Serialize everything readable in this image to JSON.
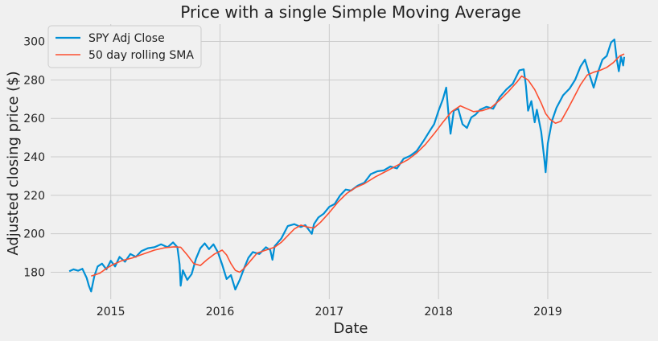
{
  "chart_data": {
    "type": "line",
    "title": "Price with a single Simple Moving Average",
    "xlabel": "Date",
    "ylabel": "Adjusted closing price ($)",
    "xlim": [
      2014.45,
      2019.95
    ],
    "ylim": [
      166,
      309
    ],
    "xticks": [
      2015,
      2016,
      2017,
      2018,
      2019
    ],
    "xtick_labels": [
      "2015",
      "2016",
      "2017",
      "2018",
      "2019"
    ],
    "yticks": [
      180,
      200,
      220,
      240,
      260,
      280,
      300
    ],
    "ytick_labels": [
      "180",
      "200",
      "220",
      "240",
      "260",
      "280",
      "300"
    ],
    "grid": true,
    "legend_position": "top-left",
    "colors": {
      "background": "#f0f0f0",
      "grid": "#cbcbcb",
      "text": "#222222"
    },
    "series": [
      {
        "name": "SPY Adj Close",
        "color": "#008fd5",
        "points": [
          [
            2014.62,
            180.5
          ],
          [
            2014.66,
            181.5
          ],
          [
            2014.7,
            180.8
          ],
          [
            2014.74,
            181.8
          ],
          [
            2014.78,
            177.0
          ],
          [
            2014.8,
            173.0
          ],
          [
            2014.82,
            170.0
          ],
          [
            2014.85,
            178.0
          ],
          [
            2014.88,
            183.0
          ],
          [
            2014.92,
            184.5
          ],
          [
            2014.96,
            181.5
          ],
          [
            2015.0,
            186.0
          ],
          [
            2015.04,
            183.0
          ],
          [
            2015.08,
            188.0
          ],
          [
            2015.13,
            185.5
          ],
          [
            2015.18,
            189.5
          ],
          [
            2015.23,
            188.0
          ],
          [
            2015.28,
            191.0
          ],
          [
            2015.34,
            192.5
          ],
          [
            2015.4,
            193.0
          ],
          [
            2015.46,
            194.5
          ],
          [
            2015.52,
            193.0
          ],
          [
            2015.57,
            195.5
          ],
          [
            2015.61,
            193.0
          ],
          [
            2015.63,
            184.0
          ],
          [
            2015.64,
            173.0
          ],
          [
            2015.66,
            181.0
          ],
          [
            2015.7,
            176.0
          ],
          [
            2015.74,
            179.0
          ],
          [
            2015.78,
            187.0
          ],
          [
            2015.82,
            192.5
          ],
          [
            2015.86,
            195.0
          ],
          [
            2015.9,
            192.0
          ],
          [
            2015.94,
            194.5
          ],
          [
            2015.98,
            190.5
          ],
          [
            2016.02,
            184.0
          ],
          [
            2016.06,
            176.5
          ],
          [
            2016.1,
            178.5
          ],
          [
            2016.14,
            171.0
          ],
          [
            2016.18,
            176.0
          ],
          [
            2016.22,
            182.0
          ],
          [
            2016.26,
            187.5
          ],
          [
            2016.3,
            190.5
          ],
          [
            2016.36,
            189.5
          ],
          [
            2016.42,
            193.0
          ],
          [
            2016.46,
            191.5
          ],
          [
            2016.48,
            186.5
          ],
          [
            2016.5,
            193.5
          ],
          [
            2016.56,
            197.5
          ],
          [
            2016.62,
            204.0
          ],
          [
            2016.68,
            205.0
          ],
          [
            2016.74,
            203.5
          ],
          [
            2016.78,
            204.5
          ],
          [
            2016.82,
            201.5
          ],
          [
            2016.84,
            200.0
          ],
          [
            2016.86,
            205.0
          ],
          [
            2016.9,
            208.5
          ],
          [
            2016.95,
            210.5
          ],
          [
            2017.0,
            214.0
          ],
          [
            2017.05,
            215.5
          ],
          [
            2017.1,
            220.0
          ],
          [
            2017.15,
            223.0
          ],
          [
            2017.2,
            222.5
          ],
          [
            2017.26,
            225.0
          ],
          [
            2017.32,
            226.5
          ],
          [
            2017.38,
            231.0
          ],
          [
            2017.44,
            232.5
          ],
          [
            2017.5,
            233.0
          ],
          [
            2017.56,
            235.0
          ],
          [
            2017.62,
            234.0
          ],
          [
            2017.68,
            239.0
          ],
          [
            2017.74,
            240.5
          ],
          [
            2017.8,
            243.0
          ],
          [
            2017.86,
            248.0
          ],
          [
            2017.92,
            253.5
          ],
          [
            2017.96,
            257.0
          ],
          [
            2018.0,
            264.0
          ],
          [
            2018.04,
            270.0
          ],
          [
            2018.07,
            276.0
          ],
          [
            2018.09,
            263.0
          ],
          [
            2018.11,
            252.0
          ],
          [
            2018.14,
            264.0
          ],
          [
            2018.18,
            265.0
          ],
          [
            2018.22,
            257.0
          ],
          [
            2018.26,
            255.0
          ],
          [
            2018.3,
            260.5
          ],
          [
            2018.34,
            262.0
          ],
          [
            2018.38,
            264.5
          ],
          [
            2018.44,
            266.0
          ],
          [
            2018.5,
            265.0
          ],
          [
            2018.56,
            271.0
          ],
          [
            2018.62,
            275.0
          ],
          [
            2018.68,
            278.0
          ],
          [
            2018.74,
            285.0
          ],
          [
            2018.78,
            285.5
          ],
          [
            2018.8,
            277.0
          ],
          [
            2018.82,
            264.0
          ],
          [
            2018.85,
            269.0
          ],
          [
            2018.88,
            258.0
          ],
          [
            2018.9,
            264.5
          ],
          [
            2018.94,
            253.0
          ],
          [
            2018.97,
            238.0
          ],
          [
            2018.98,
            232.0
          ],
          [
            2019.0,
            247.0
          ],
          [
            2019.04,
            259.0
          ],
          [
            2019.08,
            265.5
          ],
          [
            2019.14,
            272.0
          ],
          [
            2019.2,
            275.5
          ],
          [
            2019.25,
            280.0
          ],
          [
            2019.3,
            287.0
          ],
          [
            2019.34,
            290.5
          ],
          [
            2019.38,
            283.0
          ],
          [
            2019.42,
            276.0
          ],
          [
            2019.46,
            284.0
          ],
          [
            2019.5,
            290.5
          ],
          [
            2019.54,
            292.5
          ],
          [
            2019.58,
            299.5
          ],
          [
            2019.61,
            301.0
          ],
          [
            2019.63,
            291.5
          ],
          [
            2019.65,
            284.5
          ],
          [
            2019.67,
            292.0
          ],
          [
            2019.69,
            287.5
          ],
          [
            2019.7,
            292.0
          ]
        ]
      },
      {
        "name": "50 day rolling SMA",
        "color": "#fc4f30",
        "points": [
          [
            2014.82,
            178.0
          ],
          [
            2014.9,
            179.5
          ],
          [
            2014.96,
            182.0
          ],
          [
            2015.02,
            184.0
          ],
          [
            2015.1,
            186.0
          ],
          [
            2015.2,
            187.5
          ],
          [
            2015.3,
            189.5
          ],
          [
            2015.4,
            191.5
          ],
          [
            2015.5,
            192.8
          ],
          [
            2015.58,
            193.2
          ],
          [
            2015.64,
            193.0
          ],
          [
            2015.7,
            189.0
          ],
          [
            2015.76,
            184.5
          ],
          [
            2015.82,
            183.5
          ],
          [
            2015.88,
            186.5
          ],
          [
            2015.95,
            189.5
          ],
          [
            2016.02,
            191.5
          ],
          [
            2016.06,
            189.0
          ],
          [
            2016.1,
            184.5
          ],
          [
            2016.14,
            181.0
          ],
          [
            2016.18,
            180.0
          ],
          [
            2016.22,
            182.0
          ],
          [
            2016.28,
            186.0
          ],
          [
            2016.34,
            190.0
          ],
          [
            2016.42,
            191.5
          ],
          [
            2016.5,
            193.0
          ],
          [
            2016.56,
            195.5
          ],
          [
            2016.62,
            199.0
          ],
          [
            2016.68,
            202.5
          ],
          [
            2016.74,
            204.5
          ],
          [
            2016.8,
            203.5
          ],
          [
            2016.86,
            203.0
          ],
          [
            2016.92,
            206.0
          ],
          [
            2017.0,
            211.0
          ],
          [
            2017.08,
            216.5
          ],
          [
            2017.16,
            221.0
          ],
          [
            2017.24,
            224.0
          ],
          [
            2017.32,
            226.0
          ],
          [
            2017.42,
            229.5
          ],
          [
            2017.52,
            232.5
          ],
          [
            2017.62,
            235.5
          ],
          [
            2017.72,
            238.5
          ],
          [
            2017.8,
            242.0
          ],
          [
            2017.88,
            246.5
          ],
          [
            2017.96,
            252.0
          ],
          [
            2018.04,
            258.0
          ],
          [
            2018.12,
            263.5
          ],
          [
            2018.2,
            266.5
          ],
          [
            2018.26,
            265.0
          ],
          [
            2018.32,
            263.5
          ],
          [
            2018.4,
            264.0
          ],
          [
            2018.48,
            265.5
          ],
          [
            2018.56,
            269.5
          ],
          [
            2018.64,
            274.0
          ],
          [
            2018.72,
            279.0
          ],
          [
            2018.76,
            282.0
          ],
          [
            2018.82,
            280.0
          ],
          [
            2018.88,
            275.0
          ],
          [
            2018.94,
            268.0
          ],
          [
            2018.98,
            262.5
          ],
          [
            2019.02,
            259.5
          ],
          [
            2019.07,
            257.5
          ],
          [
            2019.12,
            258.5
          ],
          [
            2019.18,
            264.5
          ],
          [
            2019.24,
            271.0
          ],
          [
            2019.3,
            277.5
          ],
          [
            2019.36,
            282.5
          ],
          [
            2019.42,
            284.0
          ],
          [
            2019.48,
            285.0
          ],
          [
            2019.54,
            286.5
          ],
          [
            2019.6,
            289.0
          ],
          [
            2019.66,
            292.5
          ],
          [
            2019.7,
            293.5
          ]
        ]
      }
    ]
  }
}
